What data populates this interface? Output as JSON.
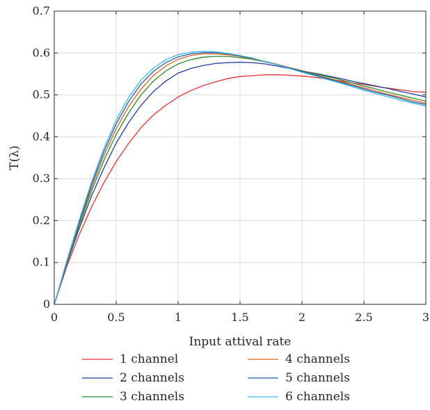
{
  "chart_data": {
    "type": "line",
    "title": "",
    "xlabel": "Input attival rate",
    "ylabel": "T(λ)",
    "xlim": [
      0,
      3
    ],
    "ylim": [
      0,
      0.7
    ],
    "xticks": [
      0,
      0.5,
      1,
      1.5,
      2,
      2.5,
      3
    ],
    "xtick_labels": [
      "0",
      "0.5",
      "1",
      "1.5",
      "2",
      "2.5",
      "3"
    ],
    "yticks": [
      0,
      0.1,
      0.2,
      0.3,
      0.4,
      0.5,
      0.6,
      0.7
    ],
    "ytick_labels": [
      "0",
      "0.1",
      "0.2",
      "0.3",
      "0.4",
      "0.5",
      "0.6",
      "0.7"
    ],
    "grid": true,
    "legend_position": "bottom",
    "x": [
      0,
      0.1,
      0.2,
      0.3,
      0.4,
      0.5,
      0.6,
      0.7,
      0.8,
      0.9,
      1.0,
      1.1,
      1.2,
      1.3,
      1.4,
      1.5,
      1.6,
      1.7,
      1.8,
      1.9,
      2.0,
      2.1,
      2.2,
      2.3,
      2.4,
      2.5,
      2.6,
      2.7,
      2.8,
      2.9,
      3.0
    ],
    "series": [
      {
        "name": "1 channel",
        "color": "#e6312e",
        "values": [
          0,
          0.09,
          0.165,
          0.232,
          0.29,
          0.341,
          0.384,
          0.422,
          0.452,
          0.475,
          0.495,
          0.51,
          0.522,
          0.531,
          0.539,
          0.544,
          0.546,
          0.548,
          0.548,
          0.547,
          0.545,
          0.542,
          0.538,
          0.534,
          0.529,
          0.525,
          0.52,
          0.516,
          0.512,
          0.508,
          0.506
        ]
      },
      {
        "name": "2 channels",
        "color": "#1f3aa6",
        "values": [
          0,
          0.095,
          0.18,
          0.258,
          0.325,
          0.385,
          0.434,
          0.475,
          0.508,
          0.533,
          0.552,
          0.563,
          0.57,
          0.575,
          0.577,
          0.578,
          0.577,
          0.574,
          0.569,
          0.563,
          0.557,
          0.552,
          0.546,
          0.54,
          0.533,
          0.527,
          0.521,
          0.515,
          0.508,
          0.502,
          0.495
        ]
      },
      {
        "name": "3 channels",
        "color": "#2a8a2a",
        "values": [
          0,
          0.097,
          0.187,
          0.27,
          0.343,
          0.406,
          0.457,
          0.5,
          0.533,
          0.557,
          0.574,
          0.584,
          0.59,
          0.592,
          0.592,
          0.589,
          0.585,
          0.579,
          0.572,
          0.565,
          0.558,
          0.551,
          0.544,
          0.537,
          0.529,
          0.521,
          0.514,
          0.506,
          0.499,
          0.492,
          0.485
        ]
      },
      {
        "name": "4 channels",
        "color": "#e0611c",
        "values": [
          0,
          0.099,
          0.192,
          0.278,
          0.355,
          0.42,
          0.472,
          0.514,
          0.546,
          0.569,
          0.585,
          0.594,
          0.598,
          0.598,
          0.596,
          0.592,
          0.586,
          0.58,
          0.573,
          0.565,
          0.557,
          0.549,
          0.541,
          0.533,
          0.525,
          0.517,
          0.509,
          0.501,
          0.494,
          0.487,
          0.48
        ]
      },
      {
        "name": "5 channels",
        "color": "#1a5fb0",
        "values": [
          0,
          0.101,
          0.196,
          0.285,
          0.364,
          0.431,
          0.484,
          0.526,
          0.556,
          0.577,
          0.591,
          0.598,
          0.601,
          0.601,
          0.598,
          0.593,
          0.587,
          0.58,
          0.572,
          0.564,
          0.556,
          0.548,
          0.539,
          0.531,
          0.523,
          0.514,
          0.506,
          0.499,
          0.491,
          0.483,
          0.477
        ]
      },
      {
        "name": "6 channels",
        "color": "#3fb8e6",
        "values": [
          0,
          0.103,
          0.2,
          0.291,
          0.372,
          0.44,
          0.494,
          0.535,
          0.564,
          0.584,
          0.596,
          0.602,
          0.604,
          0.603,
          0.599,
          0.594,
          0.588,
          0.58,
          0.572,
          0.563,
          0.554,
          0.546,
          0.537,
          0.529,
          0.52,
          0.511,
          0.503,
          0.495,
          0.487,
          0.48,
          0.473
        ]
      }
    ]
  }
}
